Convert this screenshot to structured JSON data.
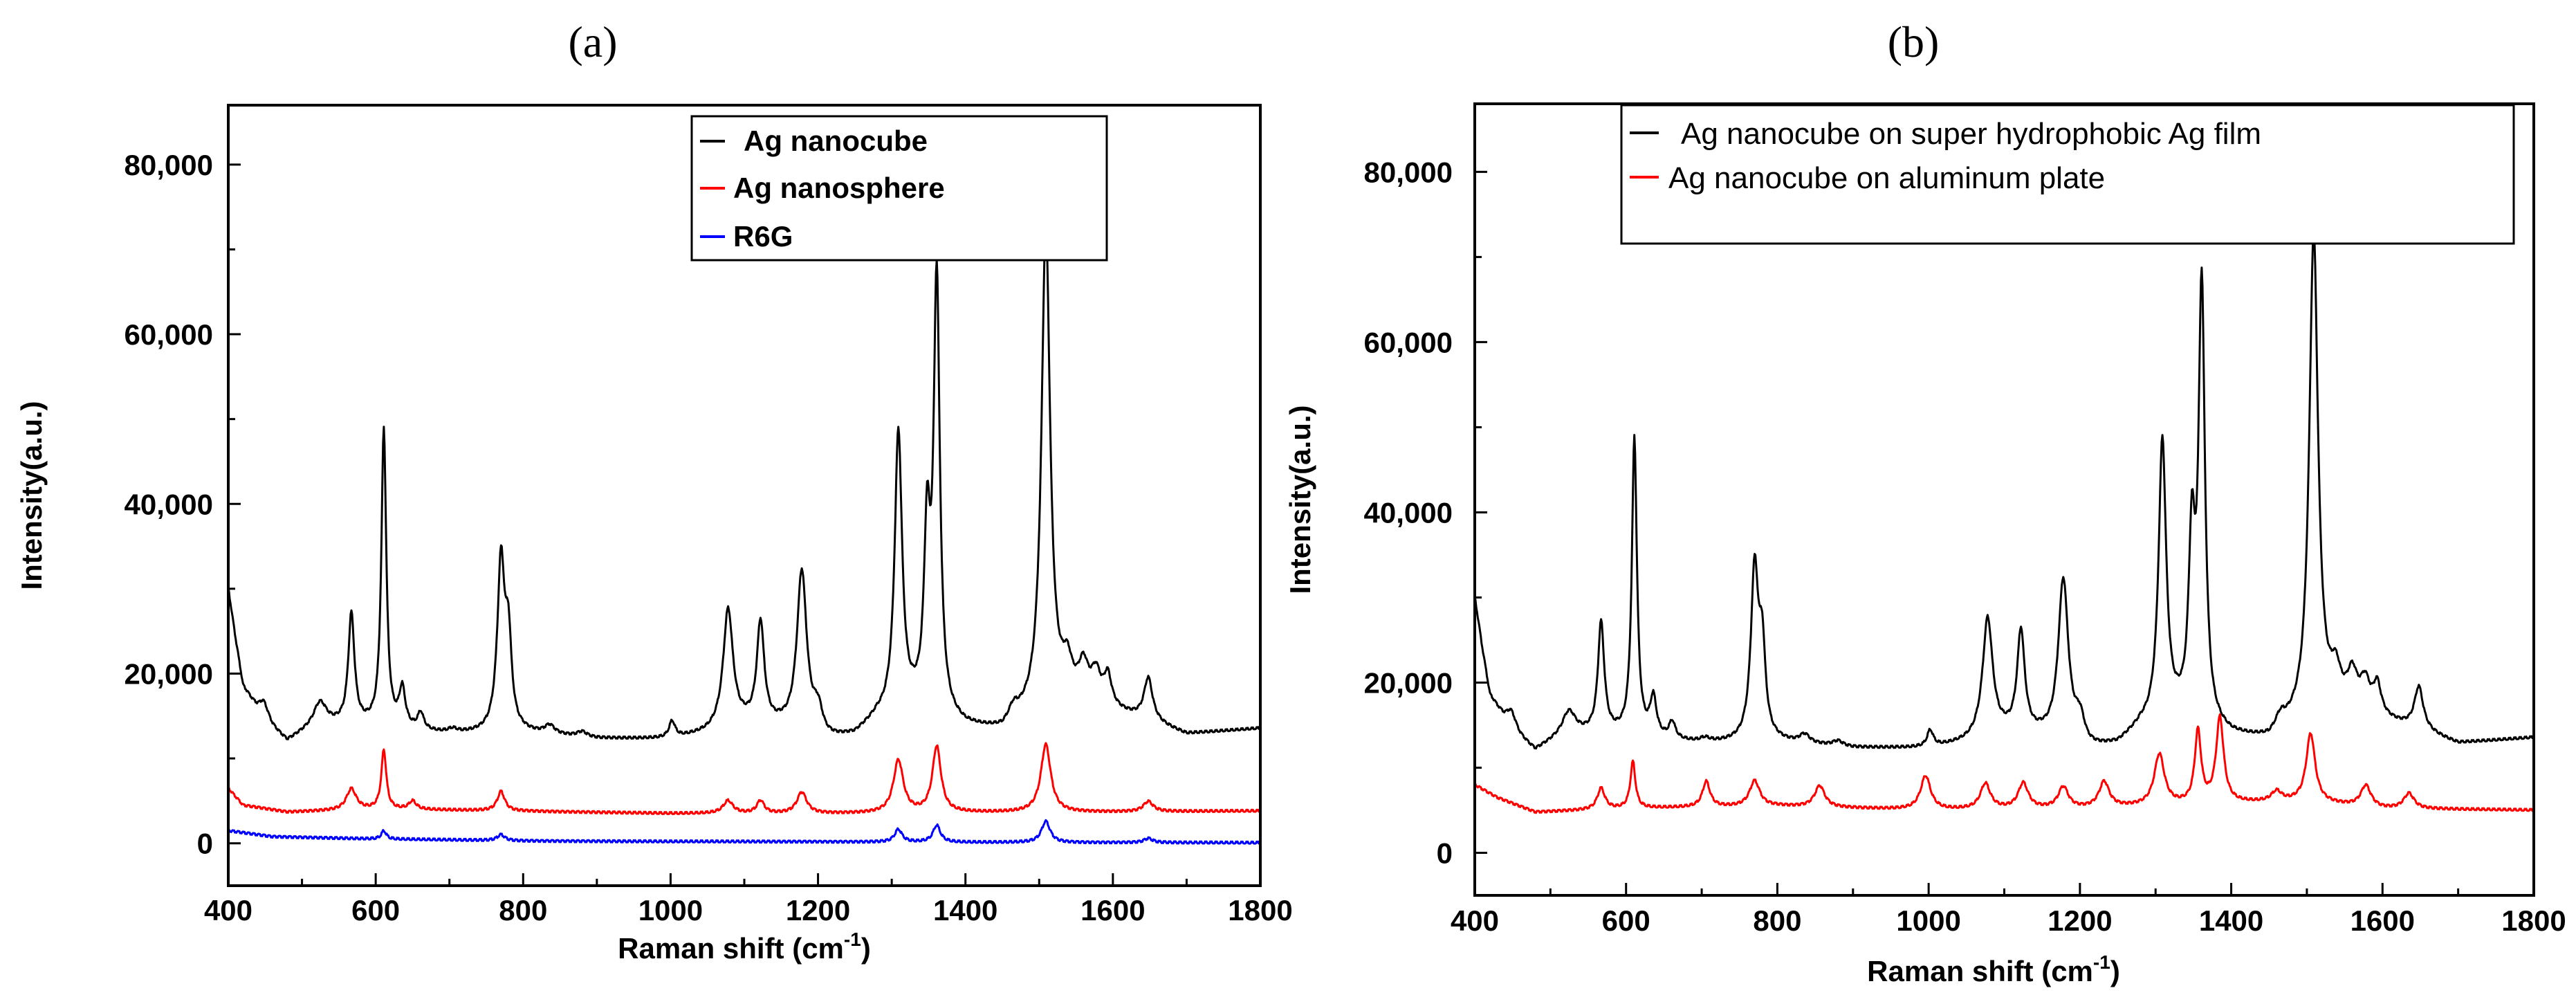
{
  "chart_data": [
    {
      "panel_label": "(a)",
      "type": "line",
      "title": "",
      "xlabel": "Raman shift (cm",
      "xlabel_sup": "-1",
      "xlabel_end": ")",
      "ylabel": "Intensity(a.u.)",
      "xlim": [
        400,
        1800
      ],
      "ylim": [
        -5000,
        87000
      ],
      "x_ticks": [
        400,
        600,
        800,
        1000,
        1200,
        1400,
        1600,
        1800
      ],
      "x_tick_labels": [
        "400",
        "600",
        "800",
        "1000",
        "1200",
        "1400",
        "1600",
        "1800"
      ],
      "y_ticks": [
        0,
        20000,
        40000,
        60000,
        80000
      ],
      "y_tick_labels": [
        "0",
        "20,000",
        "40,000",
        "60,000",
        "80,000"
      ],
      "legend_position": "top-right",
      "series": [
        {
          "name": "Ag nanocube",
          "color": "#000000",
          "baseline": [
            [
              400,
              30000
            ],
            [
              410,
              24000
            ],
            [
              420,
              18500
            ],
            [
              440,
              15500
            ],
            [
              460,
              13500
            ],
            [
              480,
              12000
            ],
            [
              520,
              14000
            ],
            [
              600,
              13800
            ],
            [
              650,
              13200
            ],
            [
              700,
              12800
            ],
            [
              800,
              13000
            ],
            [
              900,
              12300
            ],
            [
              1000,
              12200
            ],
            [
              1050,
              12800
            ],
            [
              1100,
              13800
            ],
            [
              1150,
              13500
            ],
            [
              1210,
              11800
            ],
            [
              1250,
              12500
            ],
            [
              1280,
              14500
            ],
            [
              1330,
              15500
            ],
            [
              1400,
              13500
            ],
            [
              1450,
              13000
            ],
            [
              1480,
              14500
            ],
            [
              1540,
              16500
            ],
            [
              1600,
              15500
            ],
            [
              1660,
              14000
            ],
            [
              1700,
              12800
            ],
            [
              1800,
              13500
            ]
          ],
          "peaks": [
            [
              448,
              2000,
              8
            ],
            [
              525,
              2500,
              10
            ],
            [
              567,
              13000,
              5
            ],
            [
              611,
              35000,
              4
            ],
            [
              636,
              4500,
              5
            ],
            [
              661,
              2000,
              5
            ],
            [
              704,
              500,
              8
            ],
            [
              770,
              20000,
              6
            ],
            [
              780,
              10000,
              5
            ],
            [
              836,
              1000,
              8
            ],
            [
              880,
              600,
              8
            ],
            [
              1002,
              2000,
              5
            ],
            [
              1078,
              14000,
              8
            ],
            [
              1122,
              12000,
              6
            ],
            [
              1178,
              19000,
              8
            ],
            [
              1200,
              3000,
              8
            ],
            [
              1309,
              33000,
              6
            ],
            [
              1348,
              20000,
              5
            ],
            [
              1361,
              51000,
              5
            ],
            [
              1465,
              1500,
              8
            ],
            [
              1509,
              57000,
              7
            ],
            [
              1538,
              3500,
              8
            ],
            [
              1560,
              4000,
              8
            ],
            [
              1577,
              3500,
              8
            ],
            [
              1593,
              3500,
              6
            ],
            [
              1648,
              5000,
              7
            ]
          ]
        },
        {
          "name": "Ag nanosphere",
          "color": "#ff0000",
          "baseline": [
            [
              400,
              6500
            ],
            [
              420,
              4500
            ],
            [
              480,
              3700
            ],
            [
              600,
              4000
            ],
            [
              800,
              3800
            ],
            [
              1000,
              3500
            ],
            [
              1200,
              3500
            ],
            [
              1400,
              3600
            ],
            [
              1600,
              3700
            ],
            [
              1800,
              3800
            ]
          ],
          "peaks": [
            [
              567,
              2500,
              8
            ],
            [
              611,
              7000,
              4
            ],
            [
              650,
              1000,
              6
            ],
            [
              770,
              2300,
              6
            ],
            [
              1078,
              1500,
              8
            ],
            [
              1122,
              1500,
              6
            ],
            [
              1178,
              2500,
              8
            ],
            [
              1309,
              6200,
              8
            ],
            [
              1361,
              7800,
              7
            ],
            [
              1509,
              8000,
              8
            ],
            [
              1648,
              1200,
              8
            ]
          ]
        },
        {
          "name": "R6G",
          "color": "#0000ff",
          "baseline": [
            [
              400,
              1500
            ],
            [
              460,
              800
            ],
            [
              600,
              500
            ],
            [
              800,
              300
            ],
            [
              1000,
              200
            ],
            [
              1200,
              200
            ],
            [
              1400,
              100
            ],
            [
              1600,
              100
            ],
            [
              1800,
              50
            ]
          ],
          "peaks": [
            [
              611,
              1000,
              4
            ],
            [
              770,
              700,
              6
            ],
            [
              1309,
              1500,
              6
            ],
            [
              1361,
              2000,
              6
            ],
            [
              1509,
              2500,
              7
            ],
            [
              1648,
              500,
              7
            ]
          ]
        }
      ]
    },
    {
      "panel_label": "(b)",
      "type": "line",
      "title": "",
      "xlabel": "Raman shift (cm",
      "xlabel_sup": "-1",
      "xlabel_end": ")",
      "ylabel": "Intensity(a.u.)",
      "xlim": [
        400,
        1800
      ],
      "ylim": [
        -5000,
        88000
      ],
      "x_ticks": [
        400,
        600,
        800,
        1000,
        1200,
        1400,
        1600,
        1800
      ],
      "x_tick_labels": [
        "400",
        "600",
        "800",
        "1000",
        "1200",
        "1400",
        "1600",
        "1800"
      ],
      "y_ticks": [
        0,
        20000,
        40000,
        60000,
        80000
      ],
      "y_tick_labels": [
        "0",
        "20,000",
        "40,000",
        "60,000",
        "80,000"
      ],
      "legend_position": "top-right",
      "series": [
        {
          "name": "Ag nanocube on super hydrophobic Ag film",
          "color": "#000000",
          "baseline": [
            [
              400,
              30000
            ],
            [
              410,
              24000
            ],
            [
              420,
              18500
            ],
            [
              440,
              15500
            ],
            [
              460,
              13500
            ],
            [
              480,
              12000
            ],
            [
              520,
              14000
            ],
            [
              600,
              13800
            ],
            [
              650,
              13200
            ],
            [
              700,
              12800
            ],
            [
              800,
              13000
            ],
            [
              900,
              12300
            ],
            [
              1000,
              12200
            ],
            [
              1050,
              12800
            ],
            [
              1100,
              13800
            ],
            [
              1150,
              13500
            ],
            [
              1210,
              11800
            ],
            [
              1250,
              12500
            ],
            [
              1280,
              14500
            ],
            [
              1330,
              15500
            ],
            [
              1400,
              13500
            ],
            [
              1450,
              13000
            ],
            [
              1480,
              14500
            ],
            [
              1540,
              16500
            ],
            [
              1600,
              15500
            ],
            [
              1660,
              14000
            ],
            [
              1700,
              12800
            ],
            [
              1800,
              13500
            ]
          ],
          "peaks": [
            [
              448,
              2000,
              8
            ],
            [
              525,
              2500,
              10
            ],
            [
              567,
              13000,
              5
            ],
            [
              611,
              35000,
              4
            ],
            [
              636,
              4500,
              5
            ],
            [
              661,
              2000,
              5
            ],
            [
              704,
              500,
              8
            ],
            [
              770,
              20000,
              6
            ],
            [
              780,
              10000,
              5
            ],
            [
              836,
              1000,
              8
            ],
            [
              880,
              600,
              8
            ],
            [
              1002,
              2000,
              5
            ],
            [
              1078,
              14000,
              8
            ],
            [
              1122,
              12000,
              6
            ],
            [
              1178,
              19000,
              8
            ],
            [
              1200,
              3000,
              8
            ],
            [
              1309,
              33000,
              6
            ],
            [
              1348,
              20000,
              5
            ],
            [
              1361,
              51000,
              5
            ],
            [
              1465,
              1500,
              8
            ],
            [
              1509,
              57000,
              7
            ],
            [
              1538,
              3500,
              8
            ],
            [
              1560,
              4000,
              8
            ],
            [
              1577,
              3500,
              8
            ],
            [
              1593,
              3500,
              6
            ],
            [
              1648,
              5000,
              7
            ]
          ]
        },
        {
          "name": "Ag nanocube on aluminum plate",
          "color": "#ff0000",
          "baseline": [
            [
              400,
              8000
            ],
            [
              430,
              6500
            ],
            [
              480,
              4800
            ],
            [
              600,
              5200
            ],
            [
              800,
              5500
            ],
            [
              1000,
              5000
            ],
            [
              1200,
              5200
            ],
            [
              1400,
              5800
            ],
            [
              1500,
              6000
            ],
            [
              1600,
              5200
            ],
            [
              1800,
              5000
            ]
          ],
          "peaks": [
            [
              567,
              2500,
              6
            ],
            [
              609,
              5500,
              4
            ],
            [
              706,
              3000,
              6
            ],
            [
              770,
              3000,
              8
            ],
            [
              856,
              2500,
              8
            ],
            [
              996,
              4000,
              8
            ],
            [
              1075,
              3000,
              8
            ],
            [
              1125,
              3000,
              8
            ],
            [
              1178,
              2500,
              8
            ],
            [
              1232,
              3000,
              8
            ],
            [
              1305,
              6000,
              8
            ],
            [
              1356,
              8500,
              5
            ],
            [
              1385,
              10000,
              6
            ],
            [
              1460,
              1200,
              8
            ],
            [
              1505,
              8000,
              7
            ],
            [
              1578,
              2500,
              8
            ],
            [
              1635,
              1800,
              8
            ]
          ]
        }
      ]
    }
  ]
}
